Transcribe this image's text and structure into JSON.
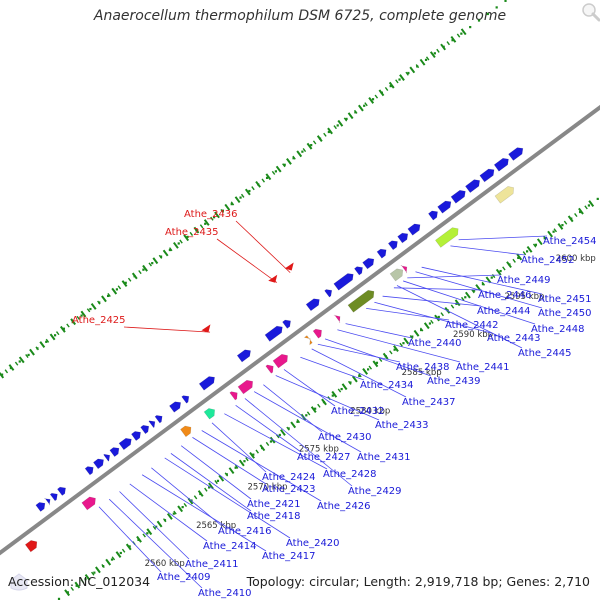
{
  "title": "Anaerocellum thermophilum DSM 6725, complete genome",
  "footer": {
    "accession": "Accession: NC_012034",
    "summary": "Topology: circular; Length: 2,919,718 bp; Genes: 2,710"
  },
  "colors": {
    "backbone": "#888888",
    "gene": "#1a1adb",
    "label": "#1a1ad8",
    "label_highlight": "#dd1a1a",
    "pointer": "#4a4af0",
    "tick": "#1a8a1a",
    "magenta": "#e8188c",
    "orange": "#f08a18",
    "green": "#1ee89a",
    "olive": "#6e8c24",
    "yellow": "#eee49a",
    "lime": "#b4f038",
    "grey": "#b8c6a8"
  },
  "icons": {
    "zoom": "magnifier-icon",
    "drag": "hand-icon"
  },
  "scale": {
    "unit": "kbp",
    "ticks": [
      {
        "kbp": 2560,
        "label": "2560 kbp"
      },
      {
        "kbp": 2565,
        "label": "2565 kbp"
      },
      {
        "kbp": 2570,
        "label": "2570 kbp"
      },
      {
        "kbp": 2575,
        "label": "2575 kbp"
      },
      {
        "kbp": 2580,
        "label": "2580 kbp"
      },
      {
        "kbp": 2585,
        "label": "2585 kbp"
      },
      {
        "kbp": 2590,
        "label": "2590 kbp"
      },
      {
        "kbp": 2595,
        "label": "2595 kbp"
      },
      {
        "kbp": 2600,
        "label": "2600 kbp"
      }
    ]
  },
  "labels": [
    {
      "text": "Athe_2409"
    },
    {
      "text": "Athe_2410"
    },
    {
      "text": "Athe_2411"
    },
    {
      "text": "Athe_2414"
    },
    {
      "text": "Athe_2416"
    },
    {
      "text": "Athe_2417"
    },
    {
      "text": "Athe_2418"
    },
    {
      "text": "Athe_2420"
    },
    {
      "text": "Athe_2421"
    },
    {
      "text": "Athe_2423"
    },
    {
      "text": "Athe_2424"
    },
    {
      "text": "Athe_2426"
    },
    {
      "text": "Athe_2427"
    },
    {
      "text": "Athe_2428"
    },
    {
      "text": "Athe_2429"
    },
    {
      "text": "Athe_2430"
    },
    {
      "text": "Athe_2431"
    },
    {
      "text": "Athe_2432"
    },
    {
      "text": "Athe_2433"
    },
    {
      "text": "Athe_2434"
    },
    {
      "text": "Athe_2437"
    },
    {
      "text": "Athe_2438"
    },
    {
      "text": "Athe_2439"
    },
    {
      "text": "Athe_2440"
    },
    {
      "text": "Athe_2441"
    },
    {
      "text": "Athe_2442"
    },
    {
      "text": "Athe_2443"
    },
    {
      "text": "Athe_2444"
    },
    {
      "text": "Athe_2445"
    },
    {
      "text": "Athe_2446"
    },
    {
      "text": "Athe_2448"
    },
    {
      "text": "Athe_2449"
    },
    {
      "text": "Athe_2450"
    },
    {
      "text": "Athe_2451"
    },
    {
      "text": "Athe_2452"
    },
    {
      "text": "Athe_2454"
    },
    {
      "text": "Athe_2425",
      "highlight": true
    },
    {
      "text": "Athe_2435",
      "highlight": true
    },
    {
      "text": "Athe_2436",
      "highlight": true
    }
  ]
}
